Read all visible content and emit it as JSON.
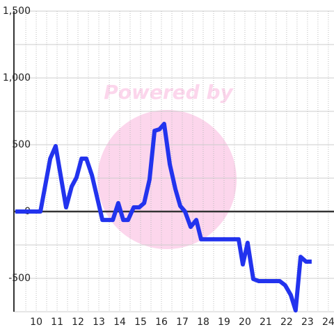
{
  "chart_data": {
    "type": "line",
    "watermark": "Powered by",
    "x": [
      9,
      10.2,
      10.67,
      10.93,
      11.43,
      11.7,
      11.93,
      12.17,
      12.4,
      12.67,
      13.17,
      13.67,
      13.93,
      14.17,
      14.4,
      14.67,
      14.93,
      15.17,
      15.43,
      15.67,
      15.9,
      16.13,
      16.4,
      16.67,
      16.9,
      17.13,
      17.4,
      17.67,
      17.9,
      19.7,
      19.9,
      20.13,
      20.4,
      20.67,
      21.67,
      21.93,
      22.2,
      22.43,
      22.67,
      22.93,
      23.2
    ],
    "series": [
      {
        "color": "#2233ee",
        "values": [
          0,
          0,
          396,
          490,
          31,
          188,
          255,
          396,
          396,
          271,
          -63,
          -63,
          63,
          -63,
          -63,
          31,
          31,
          63,
          240,
          604,
          615,
          656,
          354,
          167,
          42,
          0,
          -115,
          -63,
          -208,
          -208,
          -396,
          -234,
          -505,
          -521,
          -521,
          -552,
          -625,
          -740,
          -339,
          -375,
          -375
        ]
      }
    ],
    "xlim": [
      8.93,
      24.27
    ],
    "xticks": [
      10,
      11,
      12,
      13,
      14,
      15,
      16,
      17,
      18,
      19,
      20,
      21,
      22,
      23,
      24
    ],
    "ylim": [
      -750,
      1500
    ],
    "yticks": [
      {
        "value": 1500,
        "label": "1,500"
      },
      {
        "value": 1000,
        "label": "1,000"
      },
      500,
      0,
      -500
    ],
    "grid": true
  }
}
